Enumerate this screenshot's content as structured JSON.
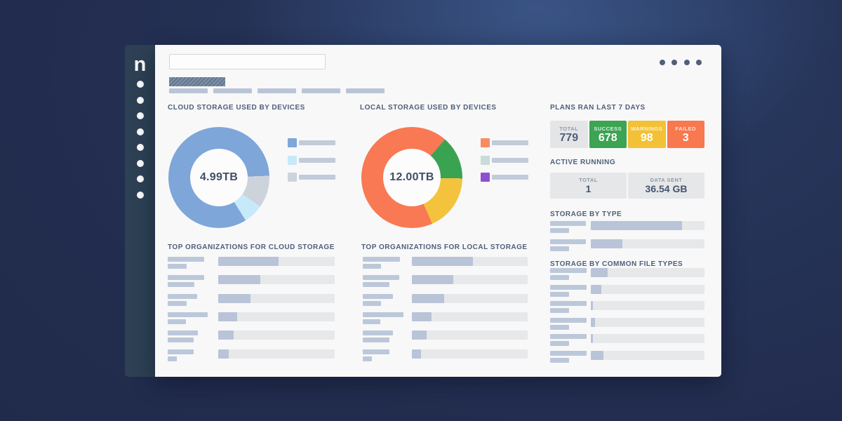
{
  "window": {
    "logo": "n",
    "sidebar_dot_count": 8,
    "menu_dot_count": 4,
    "tab_count": 5,
    "search": {
      "value": "",
      "placeholder": ""
    }
  },
  "panels": {
    "cloud": {
      "title": "CLOUD STORAGE USED BY DEVICES",
      "center_label": "4.99TB"
    },
    "local": {
      "title": "LOCAL STORAGE USED BY DEVICES",
      "center_label": "12.00TB"
    },
    "plans": {
      "title": "PLANS RAN LAST 7 DAYS",
      "stats": [
        {
          "label": "TOTAL",
          "value": "779",
          "bg": "#e4e5e7",
          "fg": "#4e5f78",
          "label_fg": "#8e99a8"
        },
        {
          "label": "SUCCESS",
          "value": "678",
          "bg": "#3ca453",
          "fg": "#ffffff",
          "label_fg": "#dcf0e2"
        },
        {
          "label": "WARNINGS",
          "value": "98",
          "bg": "#f3c136",
          "fg": "#ffffff",
          "label_fg": "#fdf2d2"
        },
        {
          "label": "FAILED",
          "value": "3",
          "bg": "#f8784f",
          "fg": "#ffffff",
          "label_fg": "#fde2d8"
        }
      ]
    },
    "active": {
      "title": "ACTIVE RUNNING",
      "cells": [
        {
          "label": "TOTAL",
          "value": "1"
        },
        {
          "label": "DATA SENT",
          "value": "36.54 GB"
        }
      ]
    },
    "storage_type": {
      "title": "STORAGE BY TYPE"
    },
    "file_types": {
      "title": "STORAGE BY COMMON FILE TYPES"
    },
    "orgs_cloud": {
      "title": "TOP ORGANIZATIONS FOR CLOUD STORAGE"
    },
    "orgs_local": {
      "title": "TOP ORGANIZATIONS FOR LOCAL STORAGE"
    }
  },
  "chart_data": [
    {
      "id": "cloud_donut",
      "type": "pie",
      "title": "CLOUD STORAGE USED BY DEVICES",
      "center_label": "4.99TB",
      "total": "4.99TB",
      "start_deg": 88,
      "segments": [
        {
          "name": "segment-secondary",
          "pct": 10.3,
          "color": "#cdd3da"
        },
        {
          "name": "segment-tertiary",
          "pct": 6.4,
          "color": "#c7e9f9"
        },
        {
          "name": "segment-primary",
          "pct": 83.3,
          "color": "#7ea6d8"
        }
      ],
      "legend_colors": [
        "#7ea6d8",
        "#c7e9f9",
        "#cdd3da"
      ],
      "legend_position": "right"
    },
    {
      "id": "local_donut",
      "type": "pie",
      "title": "LOCAL STORAGE USED BY DEVICES",
      "center_label": "12.00TB",
      "total": "12.00TB",
      "start_deg": 41,
      "segments": [
        {
          "name": "segment-green",
          "pct": 13.9,
          "color": "#3aa351"
        },
        {
          "name": "segment-yellow",
          "pct": 18.1,
          "color": "#f3c33e"
        },
        {
          "name": "segment-orange",
          "pct": 68.0,
          "color": "#f87953"
        }
      ],
      "legend_colors": [
        "#f98b62",
        "#c9dcd7",
        "#8f4fd1"
      ],
      "legend_position": "right"
    },
    {
      "id": "orgs_cloud",
      "type": "bar",
      "title": "TOP ORGANIZATIONS FOR CLOUD STORAGE",
      "values_pct": [
        52,
        36,
        28,
        16,
        13,
        9
      ],
      "label_w": [
        52,
        52,
        42,
        57,
        43,
        37
      ],
      "sub_w": [
        27,
        38,
        27,
        26,
        37,
        13
      ]
    },
    {
      "id": "orgs_local",
      "type": "bar",
      "title": "TOP ORGANIZATIONS FOR LOCAL STORAGE",
      "values_pct": [
        53,
        36,
        28,
        17,
        13,
        8
      ],
      "label_w": [
        53,
        52,
        43,
        58,
        43,
        38
      ],
      "sub_w": [
        26,
        38,
        26,
        25,
        38,
        13
      ]
    },
    {
      "id": "storage_type",
      "type": "bar",
      "title": "STORAGE BY TYPE",
      "values_pct": [
        80,
        28
      ],
      "label_w": [
        51,
        51
      ],
      "sub_w": [
        27,
        27
      ]
    },
    {
      "id": "file_types",
      "type": "bar",
      "title": "STORAGE BY COMMON FILE TYPES",
      "values_pct": [
        15,
        9,
        2,
        4,
        2,
        11
      ],
      "label_w": [
        52,
        52,
        52,
        52,
        52,
        52
      ],
      "sub_w": [
        27,
        27,
        27,
        27,
        27,
        27
      ]
    }
  ],
  "colors": {
    "background": "#212a4a",
    "background_glow": "#3d5d94",
    "sidebar": "#2e4154",
    "card": "#f8f8f9",
    "section_title": "#4e5f78",
    "placeholder_bar": "#bcc8da",
    "bar_track": "#e7e8ea",
    "bar_fill": "#b9c4d8",
    "success": "#3ca453",
    "warning": "#f3c136",
    "failed": "#f8784f"
  }
}
